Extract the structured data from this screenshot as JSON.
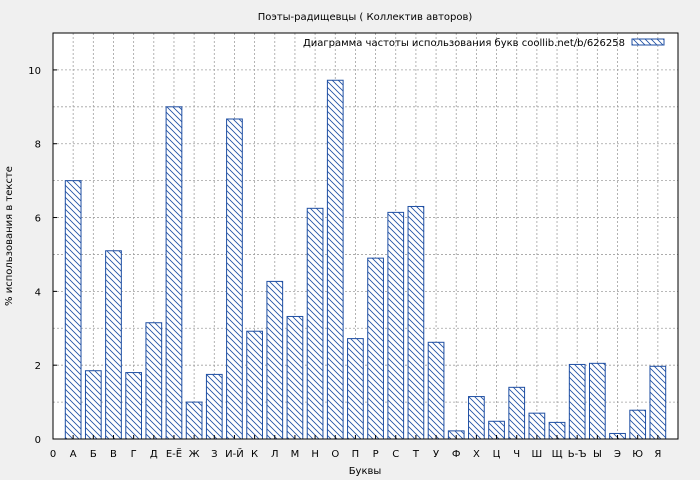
{
  "chart_data": {
    "type": "bar",
    "title": "Поэты-радищевцы ( Коллектив авторов)",
    "xlabel": "Буквы",
    "ylabel": "% использования в тексте",
    "legend": {
      "label": "Диаграмма частоты использования букв coollib.net/b/626258",
      "position": "top-right"
    },
    "x_start_label": "0",
    "categories": [
      "А",
      "Б",
      "В",
      "Г",
      "Д",
      "Е-Ё",
      "Ж",
      "З",
      "И-Й",
      "К",
      "Л",
      "М",
      "Н",
      "О",
      "П",
      "Р",
      "С",
      "Т",
      "У",
      "Ф",
      "Х",
      "Ц",
      "Ч",
      "Ш",
      "Щ",
      "Ь-Ъ",
      "Ы",
      "Э",
      "Ю",
      "Я"
    ],
    "values": [
      7.0,
      1.85,
      5.1,
      1.8,
      3.15,
      9.0,
      1.0,
      1.75,
      8.67,
      2.92,
      4.27,
      3.32,
      6.25,
      9.72,
      2.72,
      4.9,
      6.14,
      6.3,
      2.62,
      0.22,
      1.15,
      0.48,
      1.4,
      0.7,
      0.45,
      2.02,
      2.05,
      0.15,
      0.78,
      1.97
    ],
    "ylim": [
      0,
      11
    ],
    "yticks": [
      0,
      2,
      4,
      6,
      8,
      10
    ],
    "grid": true,
    "colors": {
      "bar_stroke": "#1f4fa3",
      "bar_hatch": "#1f4fa3",
      "bar_fill": "#ffffff",
      "grid": "#a0a0a0",
      "background": "#f0f0f0"
    }
  }
}
